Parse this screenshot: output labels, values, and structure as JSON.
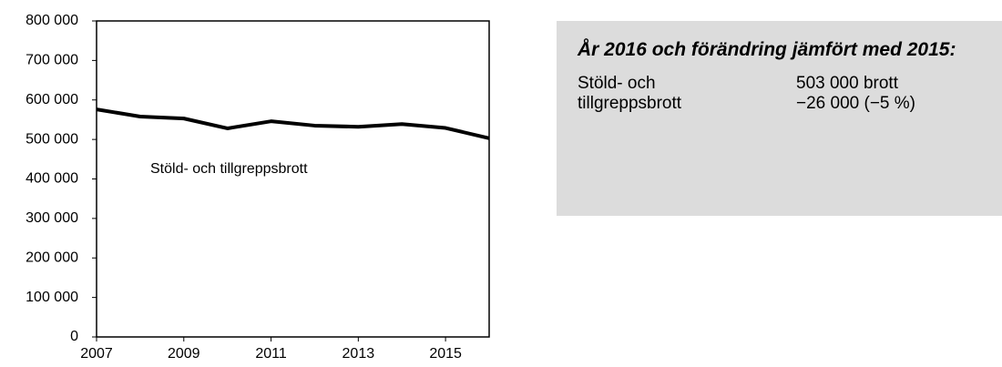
{
  "chart_data": {
    "type": "line",
    "x": [
      2007,
      2008,
      2009,
      2010,
      2011,
      2012,
      2013,
      2014,
      2015,
      2016
    ],
    "series": [
      {
        "name": "Stöld- och tillgreppsbrott",
        "color": "#000000",
        "values": [
          576000,
          558000,
          553000,
          528000,
          546000,
          535000,
          532000,
          539000,
          529000,
          503000
        ]
      }
    ],
    "xlim": [
      2007,
      2016
    ],
    "xticks": [
      2007,
      2009,
      2011,
      2013,
      2015
    ],
    "ylim": [
      0,
      800000
    ],
    "yticks": [
      0,
      {
        "value": 100000,
        "label": "100 000"
      },
      {
        "value": 200000,
        "label": "200 000"
      },
      {
        "value": 300000,
        "label": "300 000"
      },
      {
        "value": 400000,
        "label": "400 000"
      },
      {
        "value": 500000,
        "label": "500 000"
      },
      {
        "value": 600000,
        "label": "600 000"
      },
      {
        "value": 700000,
        "label": "700 000"
      },
      {
        "value": 800000,
        "label": "800 000"
      }
    ],
    "grid": false
  },
  "info_box": {
    "title": "År 2016 och förändring jämfört med 2015:",
    "label": "Stöld- och tillgreppsbrott",
    "value": "503 000 brott",
    "change": "−26 000 (−5 %)"
  }
}
